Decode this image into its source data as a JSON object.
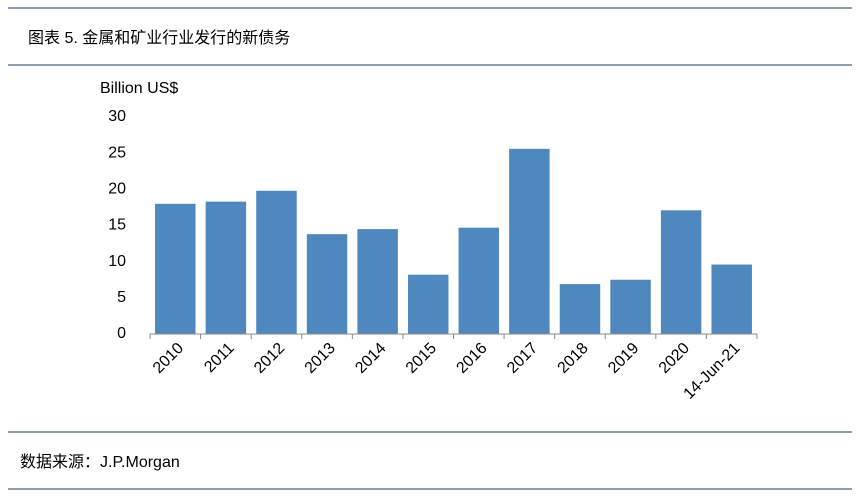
{
  "header": {
    "title": "图表 5. 金属和矿业行业发行的新债务"
  },
  "chart_data": {
    "type": "bar",
    "y_label": "Billion US$",
    "categories": [
      "2010",
      "2011",
      "2012",
      "2013",
      "2014",
      "2015",
      "2016",
      "2017",
      "2018",
      "2019",
      "2020",
      "14-Jun-21"
    ],
    "values": [
      18.0,
      18.3,
      19.8,
      13.8,
      14.5,
      8.2,
      14.7,
      25.6,
      6.9,
      7.5,
      17.1,
      9.6
    ],
    "color": "#4f87bf",
    "ylim": [
      0,
      30
    ],
    "yticks": [
      0,
      5,
      10,
      15,
      20,
      25,
      30
    ],
    "grid": false
  },
  "footer": {
    "source": "数据来源：J.P.Morgan"
  }
}
